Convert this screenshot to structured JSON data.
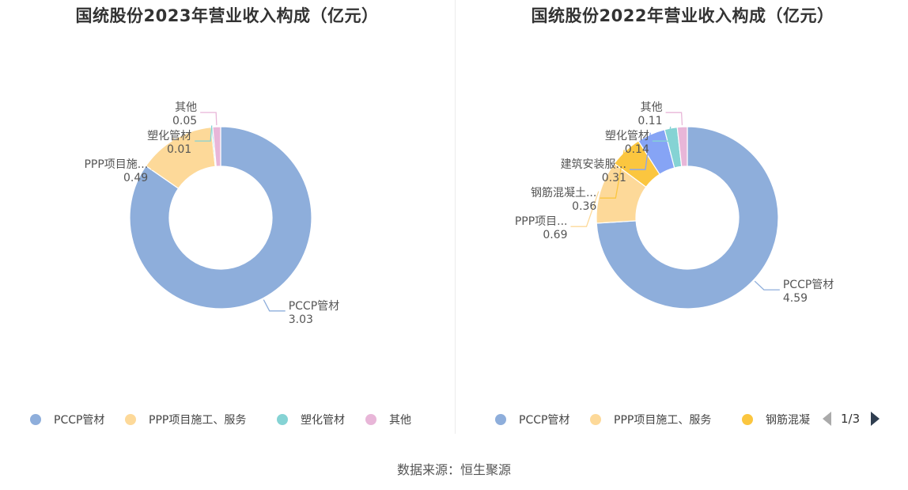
{
  "source_text": "数据来源：恒生聚源",
  "chart_data": [
    {
      "type": "pie",
      "variant": "donut",
      "title": "国统股份2023年营业收入构成（亿元）",
      "categories": [
        "PCCP管材",
        "PPP项目施工、服务",
        "塑化管材",
        "其他"
      ],
      "slice_labels": [
        "PCCP管材",
        "PPP项目施...",
        "塑化管材",
        "其他"
      ],
      "values": [
        3.03,
        0.49,
        0.01,
        0.05
      ],
      "value_labels": [
        "3.03",
        "0.49",
        "0.01",
        "0.05"
      ],
      "colors": [
        "#8eaedb",
        "#fdd999",
        "#85d3d4",
        "#e8b6d8"
      ],
      "legend": {
        "position": "bottom",
        "items": [
          "PCCP管材",
          "PPP项目施工、服务",
          "塑化管材",
          "其他"
        ]
      }
    },
    {
      "type": "pie",
      "variant": "donut",
      "title": "国统股份2022年营业收入构成（亿元）",
      "categories": [
        "PCCP管材",
        "PPP项目施工、服务",
        "钢筋混凝土...",
        "建筑安装服...",
        "塑化管材",
        "其他"
      ],
      "slice_labels": [
        "PCCP管材",
        "PPP项目...",
        "钢筋混凝土...",
        "建筑安装服...",
        "塑化管材",
        "其他"
      ],
      "values": [
        4.59,
        0.69,
        0.36,
        0.31,
        0.14,
        0.11
      ],
      "value_labels": [
        "4.59",
        "0.69",
        "0.36",
        "0.31",
        "0.14",
        "0.11"
      ],
      "colors": [
        "#8eaedb",
        "#fdd999",
        "#fbc63f",
        "#86a4f5",
        "#85d3d4",
        "#e8b6d8"
      ],
      "legend": {
        "position": "bottom",
        "items": [
          "PCCP管材",
          "PPP项目施工、服务",
          "钢筋混凝"
        ],
        "pager": "1/3"
      }
    }
  ]
}
